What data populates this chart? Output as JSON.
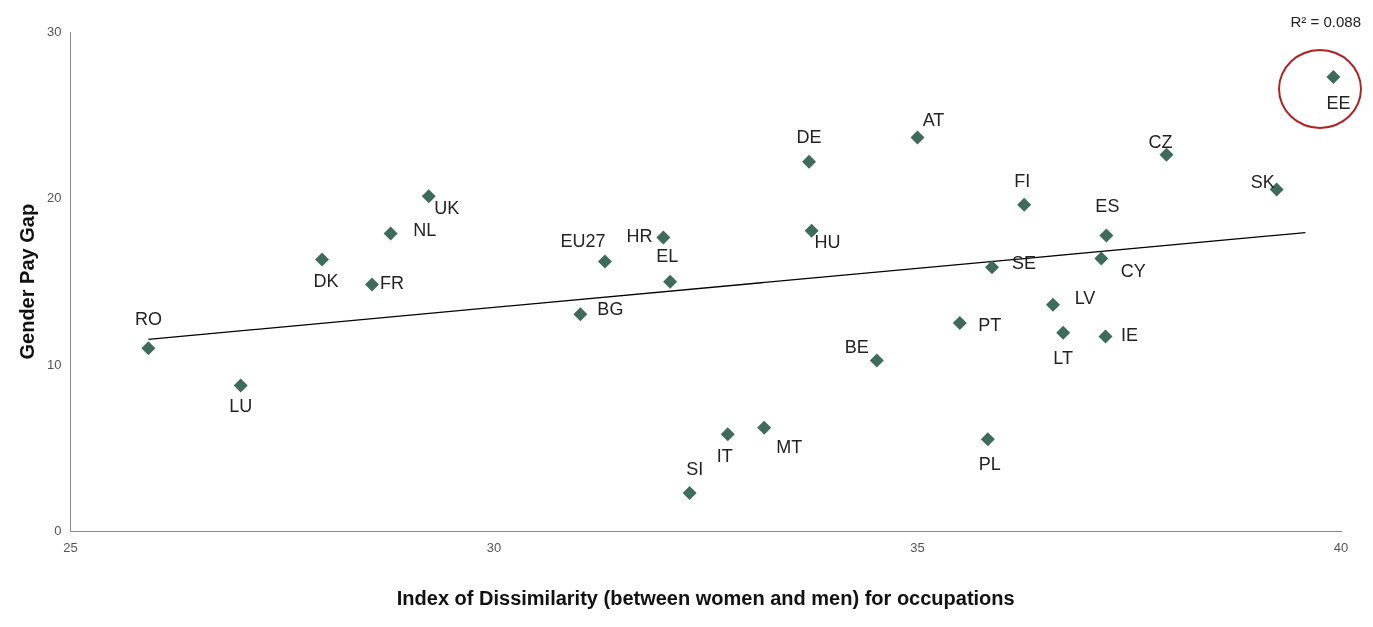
{
  "chart_data": {
    "type": "scatter",
    "xlabel": "Index of Dissimilarity (between women and men) for occupations",
    "ylabel": "Gender Pay Gap",
    "xlim": [
      25,
      40
    ],
    "ylim": [
      0,
      30
    ],
    "xticks": [
      25,
      30,
      35,
      40
    ],
    "yticks": [
      0,
      10,
      20,
      30
    ],
    "grid": false,
    "legend": false,
    "marker": "diamond",
    "series": [
      {
        "type": "scatter",
        "color": "#3f6b5b",
        "x": [
          25.92,
          27.01,
          27.97,
          28.56,
          28.78,
          29.23,
          31.02,
          31.31,
          32.0,
          32.08,
          32.31,
          32.76,
          33.19,
          33.72,
          33.75,
          34.52,
          35.0,
          35.5,
          35.88,
          35.83,
          36.26,
          36.6,
          36.72,
          37.17,
          37.23,
          37.22,
          37.94,
          39.24,
          39.91
        ],
        "values": [
          11.0,
          8.77,
          16.33,
          14.83,
          17.89,
          20.14,
          13.04,
          16.21,
          17.66,
          15.0,
          2.31,
          5.83,
          6.23,
          22.2,
          18.06,
          10.27,
          23.66,
          12.52,
          15.87,
          5.54,
          19.62,
          13.62,
          11.94,
          16.39,
          17.77,
          11.71,
          22.62,
          20.54,
          27.29
        ]
      },
      {
        "type": "line",
        "color": "#000000",
        "marker": "none",
        "x": [
          25.92,
          39.58
        ],
        "values": [
          11.54,
          17.95
        ]
      }
    ],
    "annotations": [
      {
        "text": "RO",
        "x": 25.92,
        "y": 11.0
      },
      {
        "text": "LU",
        "x": 27.01,
        "y": 8.77
      },
      {
        "text": "DK",
        "x": 27.97,
        "y": 16.33
      },
      {
        "text": "FR",
        "x": 28.56,
        "y": 14.83
      },
      {
        "text": "NL",
        "x": 28.78,
        "y": 17.89
      },
      {
        "text": "UK",
        "x": 29.23,
        "y": 20.14
      },
      {
        "text": "BG",
        "x": 31.02,
        "y": 13.04
      },
      {
        "text": "EU27",
        "x": 31.31,
        "y": 16.21
      },
      {
        "text": "HR",
        "x": 32.0,
        "y": 17.66
      },
      {
        "text": "EL",
        "x": 32.08,
        "y": 15.0
      },
      {
        "text": "SI",
        "x": 32.31,
        "y": 2.31
      },
      {
        "text": "IT",
        "x": 32.76,
        "y": 5.83
      },
      {
        "text": "MT",
        "x": 33.19,
        "y": 6.23
      },
      {
        "text": "DE",
        "x": 33.72,
        "y": 22.2
      },
      {
        "text": "HU",
        "x": 33.75,
        "y": 18.06
      },
      {
        "text": "BE",
        "x": 34.52,
        "y": 10.27
      },
      {
        "text": "AT",
        "x": 35.0,
        "y": 23.66
      },
      {
        "text": "PT",
        "x": 35.5,
        "y": 12.52
      },
      {
        "text": "SE",
        "x": 35.88,
        "y": 15.87
      },
      {
        "text": "PL",
        "x": 35.83,
        "y": 5.54
      },
      {
        "text": "FI",
        "x": 36.26,
        "y": 19.62
      },
      {
        "text": "LV",
        "x": 36.6,
        "y": 13.62
      },
      {
        "text": "LT",
        "x": 36.72,
        "y": 11.94
      },
      {
        "text": "CY",
        "x": 37.17,
        "y": 16.39
      },
      {
        "text": "ES",
        "x": 37.23,
        "y": 17.77
      },
      {
        "text": "IE",
        "x": 37.22,
        "y": 11.71
      },
      {
        "text": "CZ",
        "x": 37.94,
        "y": 22.62
      },
      {
        "text": "SK",
        "x": 39.24,
        "y": 20.54
      },
      {
        "text": "EE",
        "x": 39.91,
        "y": 27.29
      },
      "R² = 0.088"
    ]
  }
}
